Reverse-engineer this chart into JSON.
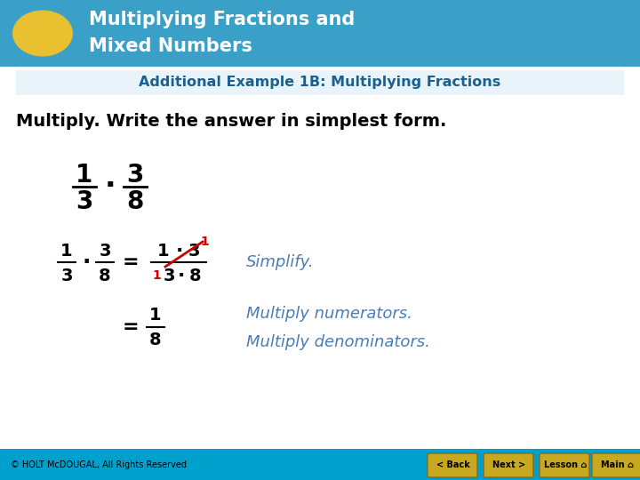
{
  "title_line1": "Multiplying Fractions and",
  "title_line2": "Mixed Numbers",
  "header_bg": "#3BA0C8",
  "header_text_color": "#FFFFFF",
  "oval_color": "#E8C030",
  "subtitle": "Additional Example 1B: Multiplying Fractions",
  "subtitle_color": "#1A6090",
  "instruction": "Multiply. Write the answer in simplest form.",
  "instruction_color": "#000000",
  "main_bg": "#FFFFFF",
  "footer_bg": "#00A0CC",
  "footer_text": "© HOLT McDOUGAL, All Rights Reserved",
  "footer_text_color": "#000000",
  "button_color": "#C8A820",
  "button_border": "#8B6914",
  "button_labels": [
    "< Back",
    "Next >",
    "Lesson ⌂",
    "Main ⌂"
  ],
  "math_color": "#000000",
  "simplify_color": "#4A7CB5",
  "cross_color": "#CC0000",
  "simplify_label": "Simplify.",
  "multiply_label1": "Multiply numerators.",
  "multiply_label2": "Multiply denominators."
}
